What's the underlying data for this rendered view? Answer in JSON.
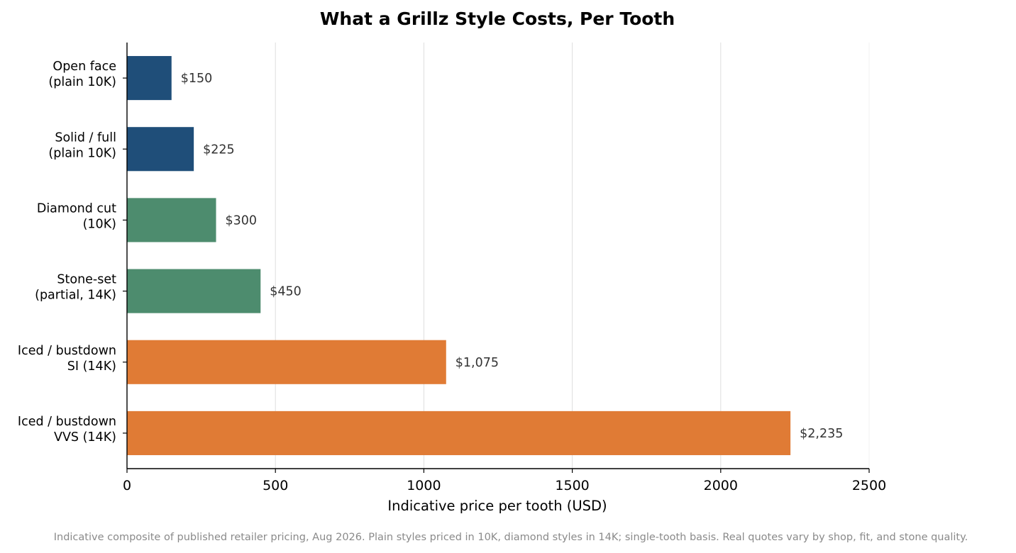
{
  "chart_data": {
    "type": "bar",
    "orientation": "horizontal",
    "title": "What a Grillz Style Costs, Per Tooth",
    "xlabel": "Indicative price per tooth (USD)",
    "ylabel": "",
    "xlim": [
      0,
      2500
    ],
    "xticks": [
      0,
      500,
      1000,
      1500,
      2000,
      2500
    ],
    "grid": "vertical",
    "categories": [
      [
        "Open face",
        "(plain 10K)"
      ],
      [
        "Solid / full",
        "(plain 10K)"
      ],
      [
        "Diamond cut",
        "(10K)"
      ],
      [
        "Stone-set",
        "(partial, 14K)"
      ],
      [
        "Iced / bustdown",
        "SI (14K)"
      ],
      [
        "Iced / bustdown",
        "VVS (14K)"
      ]
    ],
    "values": [
      150,
      225,
      300,
      450,
      1075,
      2235
    ],
    "value_labels": [
      "$150",
      "$225",
      "$300",
      "$450",
      "$1,075",
      "$2,235"
    ],
    "bar_colors": [
      "#1f4e79",
      "#1f4e79",
      "#4d8c6e",
      "#4d8c6e",
      "#e07b35",
      "#e07b35"
    ],
    "footnote": "Indicative composite of published retailer pricing, Aug 2026. Plain styles priced in 10K, diamond styles in 14K; single-tooth basis. Real quotes vary by shop, fit, and stone quality."
  }
}
